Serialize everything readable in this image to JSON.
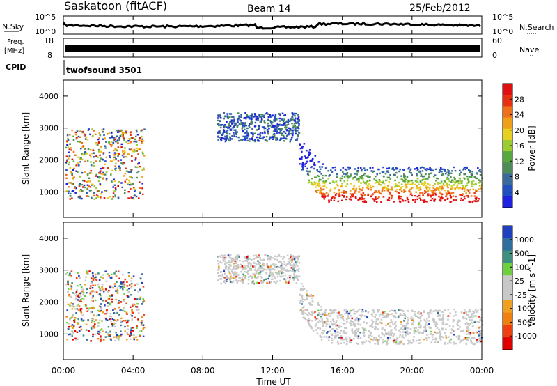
{
  "header": {
    "station": "Saskatoon (fitACF)",
    "beam": "Beam 14",
    "date": "25/Feb/2012"
  },
  "status_panels": {
    "nsky_label": "N.Sky",
    "nsky_ticks": [
      "10^5",
      "10^0"
    ],
    "nsearch_label": "N.Search",
    "freq_label_line1": "Freq.",
    "freq_label_line2": "[MHz]",
    "freq_ticks": [
      "18",
      "8"
    ],
    "nave_label": "Nave",
    "nave_ticks": [
      "60",
      "0"
    ],
    "cpid_label": "CPID",
    "cpid_value": "twofsound 3501"
  },
  "chart_data": [
    {
      "type": "heatmap",
      "name": "power",
      "ylabel": "Slant Range [km]",
      "ylim": [
        200,
        4500
      ],
      "yticks": [
        "1000",
        "2000",
        "3000",
        "4000"
      ],
      "xlim": [
        0,
        24
      ],
      "xticks": [
        "00:00",
        "04:00",
        "08:00",
        "12:00",
        "16:00",
        "20:00",
        "00:00"
      ],
      "xlabel": "Time UT",
      "colorbar": {
        "label": "Power [dB]",
        "ticks": [
          "4",
          "8",
          "12",
          "16",
          "20",
          "24",
          "28"
        ],
        "colors": [
          "#2020e0",
          "#2050c0",
          "#3a6a9a",
          "#4e8c5a",
          "#58a840",
          "#9ccc30",
          "#e8d020",
          "#f0a018",
          "#f07018",
          "#e83010",
          "#e01010"
        ]
      },
      "scatter_regions": [
        {
          "t_start": 0.1,
          "t_end": 4.6,
          "r_start": 800,
          "r_end": 3000,
          "level": "mixed"
        },
        {
          "t_start": 8.8,
          "t_end": 13.5,
          "r_start": 2600,
          "r_end": 3500,
          "level": "low"
        },
        {
          "t_start": 13.5,
          "t_end": 24.0,
          "r_start": 700,
          "r_end": 1800,
          "level": "high"
        }
      ]
    },
    {
      "type": "heatmap",
      "name": "velocity",
      "ylabel": "Slant Range [km]",
      "ylim": [
        200,
        4500
      ],
      "yticks": [
        "1000",
        "2000",
        "3000",
        "4000"
      ],
      "xlim": [
        0,
        24
      ],
      "xticks": [
        "00:00",
        "04:00",
        "08:00",
        "12:00",
        "16:00",
        "20:00",
        "00:00"
      ],
      "xlabel": "Time UT",
      "colorbar": {
        "label": "Velocity [m s^-1]",
        "ticks": [
          "1000",
          "500",
          "100",
          "25",
          "-25",
          "-100",
          "-500",
          "-1000"
        ],
        "colors": [
          "#1f3fbf",
          "#2f6f9f",
          "#3f8f7f",
          "#6fcf3f",
          "#c8c8c8",
          "#c8c8c8",
          "#f0a020",
          "#f08010",
          "#f04010",
          "#e00000"
        ]
      },
      "scatter_regions": [
        {
          "t_start": 0.1,
          "t_end": 4.6,
          "r_start": 800,
          "r_end": 3000,
          "level": "mixed"
        },
        {
          "t_start": 8.8,
          "t_end": 13.5,
          "r_start": 2600,
          "r_end": 3500,
          "level": "ground"
        },
        {
          "t_start": 13.5,
          "t_end": 24.0,
          "r_start": 700,
          "r_end": 1800,
          "level": "ground"
        }
      ]
    }
  ]
}
